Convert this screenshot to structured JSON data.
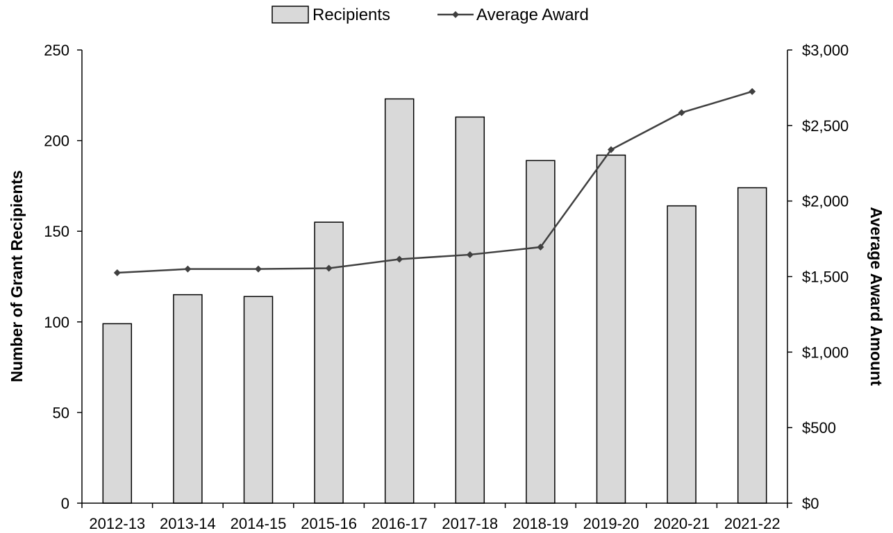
{
  "chart_data": {
    "type": "bar+line",
    "categories": [
      "2012-13",
      "2013-14",
      "2014-15",
      "2015-16",
      "2016-17",
      "2017-18",
      "2018-19",
      "2019-20",
      "2020-21",
      "2021-22"
    ],
    "series": [
      {
        "name": "Recipients",
        "type": "bar",
        "axis": "left",
        "values": [
          99,
          115,
          114,
          155,
          223,
          213,
          189,
          192,
          164,
          174
        ]
      },
      {
        "name": "Average Award",
        "type": "line",
        "axis": "right",
        "values": [
          1525,
          1550,
          1550,
          1555,
          1615,
          1645,
          1695,
          2340,
          2585,
          2725
        ]
      }
    ],
    "ylabel": "Number of Grant Recipients",
    "y2label": "Average Award Amount",
    "ylim": [
      0,
      250
    ],
    "y2lim": [
      0,
      3000
    ],
    "yticks": [
      "0",
      "50",
      "100",
      "150",
      "200",
      "250"
    ],
    "y2ticks": [
      "$0",
      "$500",
      "$1,000",
      "$1,500",
      "$2,000",
      "$2,500",
      "$3,000"
    ],
    "legend_position": "top-center",
    "grid": false,
    "colors": {
      "bar_fill": "#d9d9d9",
      "bar_stroke": "#000000",
      "line": "#404040",
      "axis": "#000000"
    }
  }
}
